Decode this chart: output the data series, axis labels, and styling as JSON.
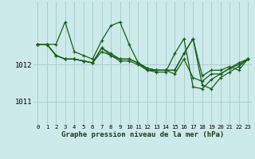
{
  "title": "Graphe pression niveau de la mer (hPa)",
  "bg_color": "#cdeaea",
  "grid_color": "#aacece",
  "line_color": "#1a5c1a",
  "marker_color": "#1a5c1a",
  "x_labels": [
    "0",
    "1",
    "2",
    "3",
    "4",
    "5",
    "6",
    "7",
    "8",
    "9",
    "10",
    "11",
    "12",
    "13",
    "14",
    "15",
    "16",
    "17",
    "18",
    "19",
    "20",
    "21",
    "22",
    "23"
  ],
  "yticks": [
    1011,
    1012
  ],
  "ylim": [
    1010.4,
    1013.7
  ],
  "xlim": [
    -0.5,
    23.5
  ],
  "series": [
    [
      1012.55,
      1012.55,
      1012.55,
      1013.15,
      1012.35,
      1012.25,
      1012.15,
      1012.65,
      1013.05,
      1013.15,
      1012.55,
      1012.05,
      1011.85,
      1011.85,
      1011.85,
      1011.85,
      1012.3,
      1012.7,
      1011.7,
      1011.85,
      1011.85,
      1011.95,
      1011.85,
      1012.15
    ],
    [
      1012.55,
      1012.55,
      1012.25,
      1012.15,
      1012.15,
      1012.1,
      1012.05,
      1012.45,
      1012.25,
      1012.15,
      1012.15,
      1012.05,
      1011.9,
      1011.85,
      1011.85,
      1011.75,
      1012.15,
      1011.65,
      1011.55,
      1011.75,
      1011.75,
      1011.9,
      1012.05,
      1012.15
    ],
    [
      1012.55,
      1012.55,
      1012.25,
      1012.15,
      1012.15,
      1012.1,
      1012.05,
      1012.45,
      1012.3,
      1012.15,
      1012.15,
      1012.05,
      1011.9,
      1011.85,
      1011.85,
      1011.85,
      1012.3,
      1012.7,
      1011.45,
      1011.35,
      1011.65,
      1011.8,
      1011.95,
      1012.15
    ],
    [
      1012.55,
      1012.55,
      1012.25,
      1012.15,
      1012.15,
      1012.1,
      1012.05,
      1012.35,
      1012.25,
      1012.1,
      1012.1,
      1012.0,
      1011.85,
      1011.8,
      1011.8,
      1012.3,
      1012.7,
      1011.4,
      1011.35,
      1011.6,
      1011.75,
      1011.9,
      1012.0,
      1012.15
    ]
  ]
}
